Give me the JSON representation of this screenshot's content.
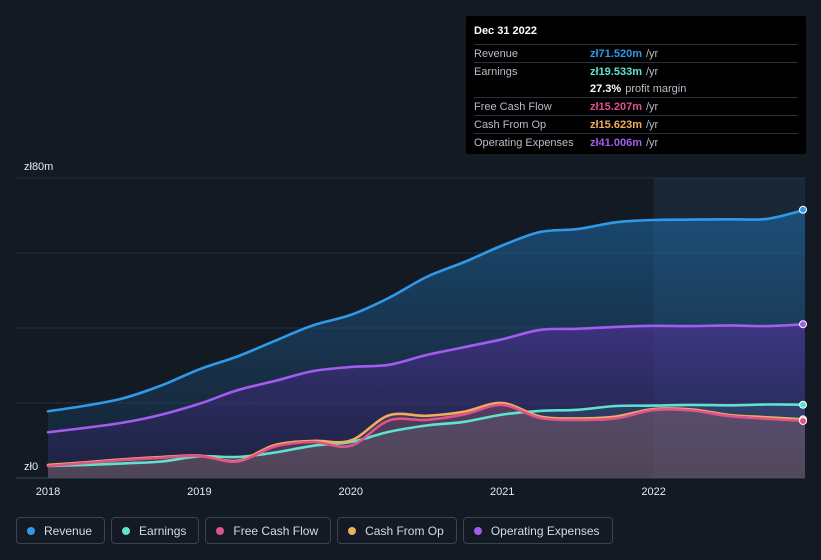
{
  "tooltip": {
    "date": "Dec 31 2022",
    "rows": [
      {
        "label": "Revenue",
        "value": "zł71.520m",
        "unit": "/yr",
        "color": "#2f9ae8"
      },
      {
        "label": "Earnings",
        "value": "zł19.533m",
        "unit": "/yr",
        "color": "#5fe3cf"
      },
      {
        "label": "",
        "value": "27.3%",
        "unit": "profit margin",
        "color": "#ffffff"
      },
      {
        "label": "Free Cash Flow",
        "value": "zł15.207m",
        "unit": "/yr",
        "color": "#e0528a"
      },
      {
        "label": "Cash From Op",
        "value": "zł15.623m",
        "unit": "/yr",
        "color": "#f0ad5f"
      },
      {
        "label": "Operating Expenses",
        "value": "zł41.006m",
        "unit": "/yr",
        "color": "#a35cf0"
      }
    ]
  },
  "legend": [
    {
      "label": "Revenue",
      "color": "#2f9ae8"
    },
    {
      "label": "Earnings",
      "color": "#5fe3cf"
    },
    {
      "label": "Free Cash Flow",
      "color": "#e0528a"
    },
    {
      "label": "Cash From Op",
      "color": "#f0ad5f"
    },
    {
      "label": "Operating Expenses",
      "color": "#a35cf0"
    }
  ],
  "chart_data": {
    "type": "area",
    "y_unit": "zł m",
    "ylim": [
      0,
      80
    ],
    "xlim": [
      2018.0,
      2023.0
    ],
    "ytick_labels": [
      {
        "value": 80,
        "label": "zł80m"
      },
      {
        "value": 0,
        "label": "zł0"
      }
    ],
    "xticks": [
      {
        "value": 2018,
        "label": "2018"
      },
      {
        "value": 2019,
        "label": "2019"
      },
      {
        "value": 2020,
        "label": "2020"
      },
      {
        "value": 2021,
        "label": "2021"
      },
      {
        "value": 2022,
        "label": "2022"
      }
    ],
    "highlight_from": 2022.0,
    "series": [
      {
        "name": "Revenue",
        "color": "#2f9ae8",
        "fill": true,
        "x": [
          2018.0,
          2018.25,
          2018.5,
          2018.75,
          2019.0,
          2019.25,
          2019.5,
          2019.75,
          2020.0,
          2020.25,
          2020.5,
          2020.75,
          2021.0,
          2021.25,
          2021.5,
          2021.75,
          2022.0,
          2022.25,
          2022.5,
          2022.75,
          2023.0
        ],
        "values": [
          17.8,
          19.3,
          21.3,
          24.7,
          29.0,
          32.4,
          36.6,
          40.7,
          43.5,
          48.0,
          53.6,
          57.6,
          62.0,
          65.6,
          66.4,
          68.2,
          68.8,
          68.9,
          69.0,
          69.1,
          71.52
        ]
      },
      {
        "name": "Operating Expenses",
        "color": "#a35cf0",
        "fill": true,
        "x": [
          2018.0,
          2018.25,
          2018.5,
          2018.75,
          2019.0,
          2019.25,
          2019.5,
          2019.75,
          2020.0,
          2020.25,
          2020.5,
          2020.75,
          2021.0,
          2021.25,
          2021.5,
          2021.75,
          2022.0,
          2022.25,
          2022.5,
          2022.75,
          2023.0
        ],
        "values": [
          12.2,
          13.4,
          14.8,
          16.9,
          19.8,
          23.4,
          25.9,
          28.5,
          29.6,
          30.2,
          32.8,
          34.9,
          37.0,
          39.5,
          39.8,
          40.3,
          40.6,
          40.5,
          40.7,
          40.5,
          41.006
        ]
      },
      {
        "name": "Earnings",
        "color": "#5fe3cf",
        "fill": true,
        "x": [
          2018.0,
          2018.25,
          2018.5,
          2018.75,
          2019.0,
          2019.25,
          2019.5,
          2019.75,
          2020.0,
          2020.25,
          2020.5,
          2020.75,
          2021.0,
          2021.25,
          2021.5,
          2021.75,
          2022.0,
          2022.25,
          2022.5,
          2022.75,
          2023.0
        ],
        "values": [
          3.2,
          3.5,
          3.9,
          4.4,
          5.8,
          5.6,
          6.8,
          8.6,
          9.6,
          12.3,
          14.0,
          15.0,
          16.9,
          17.9,
          18.2,
          19.2,
          19.3,
          19.5,
          19.4,
          19.6,
          19.533
        ]
      },
      {
        "name": "Cash From Op",
        "color": "#f0ad5f",
        "fill": true,
        "x": [
          2018.0,
          2018.25,
          2018.5,
          2018.75,
          2019.0,
          2019.25,
          2019.5,
          2019.75,
          2020.0,
          2020.25,
          2020.5,
          2020.75,
          2021.0,
          2021.25,
          2021.5,
          2021.75,
          2022.0,
          2022.25,
          2022.5,
          2022.75,
          2023.0
        ],
        "values": [
          3.5,
          4.2,
          5.0,
          5.6,
          6.0,
          4.6,
          8.8,
          9.9,
          10.0,
          16.7,
          16.6,
          17.7,
          20.0,
          16.4,
          15.9,
          16.4,
          18.4,
          18.3,
          16.8,
          16.2,
          15.623
        ]
      },
      {
        "name": "Free Cash Flow",
        "color": "#e0528a",
        "fill": true,
        "x": [
          2018.0,
          2018.25,
          2018.5,
          2018.75,
          2019.0,
          2019.25,
          2019.5,
          2019.75,
          2020.0,
          2020.25,
          2020.5,
          2020.75,
          2021.0,
          2021.25,
          2021.5,
          2021.75,
          2022.0,
          2022.25,
          2022.5,
          2022.75,
          2023.0
        ],
        "values": [
          3.2,
          4.0,
          4.8,
          5.4,
          5.9,
          4.4,
          8.4,
          9.6,
          8.6,
          15.3,
          15.5,
          17.0,
          19.5,
          16.0,
          15.5,
          15.9,
          18.1,
          18.0,
          16.5,
          15.8,
          15.207
        ]
      }
    ]
  }
}
